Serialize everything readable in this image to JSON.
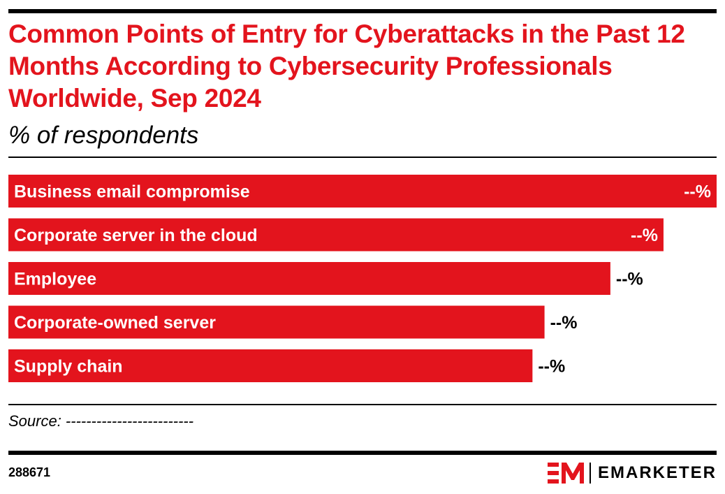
{
  "title": "Common Points of Entry for Cyberattacks in the Past 12 Months According to Cybersecurity Professionals Worldwide, Sep 2024",
  "subtitle": "% of respondents",
  "source": "Source: -------------------------",
  "chart_id": "288671",
  "brand": {
    "name": "EMARKETER",
    "logo_icon": "em-logo-icon"
  },
  "colors": {
    "bar": "#e3141d",
    "text": "#000000",
    "bar_text": "#ffffff"
  },
  "chart_data": {
    "type": "bar",
    "orientation": "horizontal",
    "title": "Common Points of Entry for Cyberattacks in the Past 12 Months According to Cybersecurity Professionals Worldwide, Sep 2024",
    "subtitle": "% of respondents",
    "categories": [
      "Business email compromise",
      "Corporate server in the cloud",
      "Employee",
      "Corporate-owned server",
      "Supply chain"
    ],
    "values": [
      100,
      92.5,
      85,
      75.7,
      74
    ],
    "value_labels": [
      "--%",
      "--%",
      "--%",
      "--%",
      "--%"
    ],
    "grid": false,
    "legend": "none"
  }
}
